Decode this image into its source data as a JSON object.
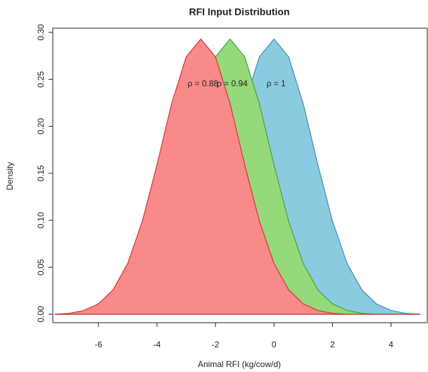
{
  "chart_data": {
    "type": "area",
    "title": "RFI Input Distribution",
    "x_label": "Animal RFI (kg/cow/d)",
    "y_label": "Density",
    "x": [
      -7.5,
      -7,
      -6.5,
      -6,
      -5.5,
      -5,
      -4.5,
      -4,
      -3.5,
      -3,
      -2.5,
      -2,
      -1.5,
      -1,
      -0.5,
      0,
      0.5,
      1,
      1.5,
      2,
      2.5,
      3,
      3.5,
      4,
      4.5,
      5
    ],
    "series": [
      {
        "name": "ρ = 1",
        "color": "#8ccadf",
        "stroke": "#3a8fc0",
        "values": [
          0,
          0,
          0,
          0,
          0,
          0,
          0.001,
          0.004,
          0.011,
          0.026,
          0.054,
          0.099,
          0.159,
          0.224,
          0.274,
          0.293,
          0.274,
          0.224,
          0.159,
          0.099,
          0.054,
          0.026,
          0.011,
          0.004,
          0.001,
          0
        ]
      },
      {
        "name": "ρ = 0.94",
        "color": "#95d97b",
        "stroke": "#3da83d",
        "values": [
          0,
          0,
          0,
          0.001,
          0.004,
          0.011,
          0.026,
          0.054,
          0.099,
          0.159,
          0.224,
          0.274,
          0.293,
          0.274,
          0.224,
          0.159,
          0.099,
          0.054,
          0.026,
          0.011,
          0.004,
          0.001,
          0,
          0,
          0,
          0
        ]
      },
      {
        "name": "ρ = 0.88",
        "color": "#f88a8a",
        "stroke": "#e03030",
        "values": [
          0,
          0.001,
          0.004,
          0.011,
          0.026,
          0.054,
          0.099,
          0.159,
          0.224,
          0.274,
          0.293,
          0.274,
          0.224,
          0.159,
          0.099,
          0.054,
          0.026,
          0.011,
          0.004,
          0.001,
          0,
          0,
          0,
          0,
          0,
          0
        ]
      }
    ],
    "xlim": [
      -7.56,
      5.24
    ],
    "ylim": [
      -0.009,
      0.3045
    ],
    "xticks": [
      -6,
      -4,
      -2,
      0,
      2,
      4
    ],
    "yticks": [
      {
        "value": 0,
        "label": "0.00"
      },
      {
        "value": 0.05,
        "label": "0.05"
      },
      {
        "value": 0.1,
        "label": "0.10"
      },
      {
        "value": 0.15,
        "label": "0.15"
      },
      {
        "value": 0.2,
        "label": "0.20"
      },
      {
        "value": 0.25,
        "label": "0.25"
      },
      {
        "value": 0.3,
        "label": "0.30"
      }
    ]
  }
}
